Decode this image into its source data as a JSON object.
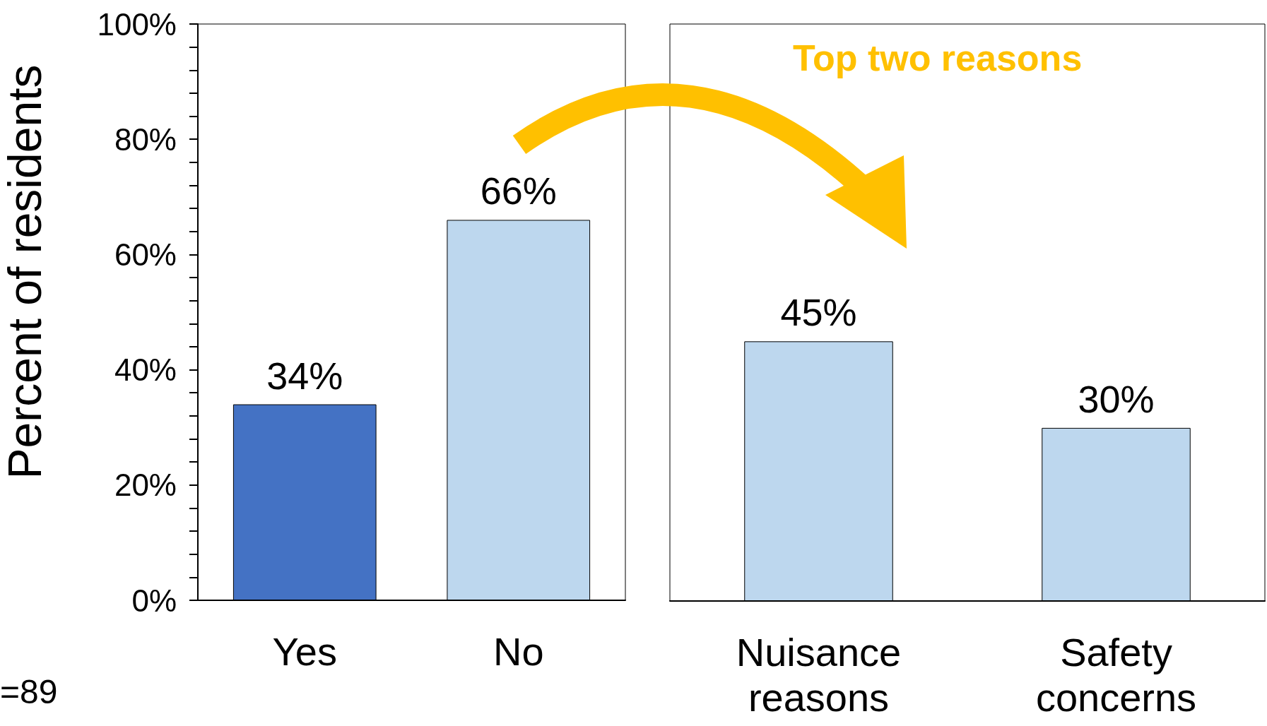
{
  "chart_data": [
    {
      "type": "bar",
      "ylabel": "Percent of residents",
      "categories": [
        "Yes",
        "No"
      ],
      "values": [
        34,
        66
      ],
      "colors": [
        "#4472c4",
        "#bdd7ee"
      ],
      "value_labels": [
        "34%",
        "66%"
      ],
      "ylim": [
        0,
        100
      ],
      "yticks": [
        {
          "value": 0,
          "label": "0%"
        },
        {
          "value": 4,
          "label": null
        },
        {
          "value": 8,
          "label": null
        },
        {
          "value": 12,
          "label": null
        },
        {
          "value": 16,
          "label": null
        },
        {
          "value": 20,
          "label": "20%"
        },
        {
          "value": 24,
          "label": null
        },
        {
          "value": 28,
          "label": null
        },
        {
          "value": 32,
          "label": null
        },
        {
          "value": 36,
          "label": null
        },
        {
          "value": 40,
          "label": "40%"
        },
        {
          "value": 44,
          "label": null
        },
        {
          "value": 48,
          "label": null
        },
        {
          "value": 52,
          "label": null
        },
        {
          "value": 56,
          "label": null
        },
        {
          "value": 60,
          "label": "60%"
        },
        {
          "value": 64,
          "label": null
        },
        {
          "value": 68,
          "label": null
        },
        {
          "value": 72,
          "label": null
        },
        {
          "value": 76,
          "label": null
        },
        {
          "value": 80,
          "label": "80%"
        },
        {
          "value": 84,
          "label": null
        },
        {
          "value": 88,
          "label": null
        },
        {
          "value": 92,
          "label": null
        },
        {
          "value": 96,
          "label": null
        },
        {
          "value": 100,
          "label": "100%"
        }
      ],
      "grid": false,
      "annotations": [
        "=89"
      ]
    },
    {
      "type": "bar",
      "categories": [
        "Nuisance\nreasons",
        "Safety\nconcerns"
      ],
      "values": [
        45,
        30
      ],
      "colors": [
        "#bdd7ee",
        "#bdd7ee"
      ],
      "value_labels": [
        "45%",
        "30%"
      ],
      "ylim": [
        0,
        100
      ],
      "tick_labels": "x",
      "grid": false,
      "annotations": [
        "Top two reasons"
      ]
    }
  ]
}
